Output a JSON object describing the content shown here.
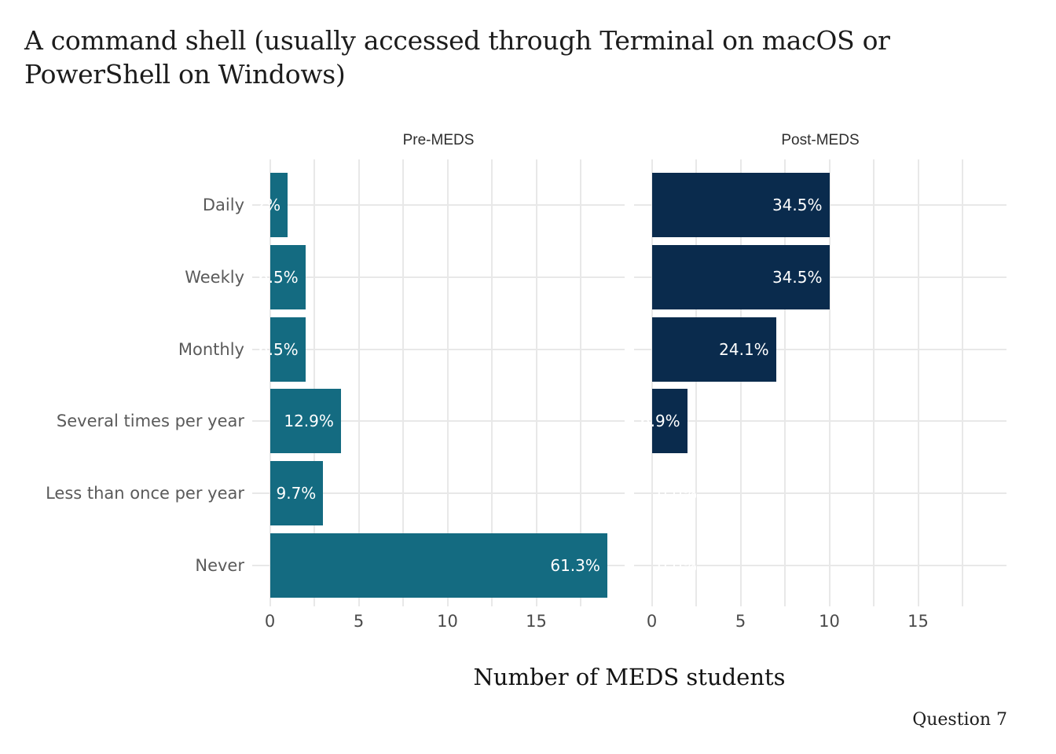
{
  "title": {
    "line1": "A command shell (usually accessed through Terminal on macOS or",
    "line2": "PowerShell on Windows)"
  },
  "caption": "Question 7",
  "axis": {
    "x_title": "Number of MEDS students",
    "tick_labels": [
      "0",
      "5",
      "10",
      "15"
    ],
    "tick_values": [
      0,
      5,
      10,
      15
    ]
  },
  "colors": {
    "pre_bar": "#146b81",
    "post_bar": "#0a2b4d",
    "gridline": "#e8e8e8",
    "bar_label_text": "#ffffff",
    "axis_text": "#4b4b4b",
    "category_text": "#5a5a5a",
    "strip_text": "#2e2e2e",
    "title_text": "#1c1c1c"
  },
  "chart_data": {
    "type": "bar",
    "orientation": "horizontal",
    "title": "A command shell (usually accessed through Terminal on macOS or PowerShell on Windows)",
    "xlabel": "Number of MEDS students",
    "ylabel": "",
    "categories": [
      "Daily",
      "Weekly",
      "Monthly",
      "Several times per year",
      "Less than once per year",
      "Never"
    ],
    "facets": [
      {
        "label": "Pre-MEDS",
        "color": "#146b81",
        "values": [
          1,
          2,
          2,
          4,
          3,
          19
        ],
        "bar_labels": [
          "3.2%",
          "6.5%",
          "6.5%",
          "12.9%",
          "9.7%",
          "61.3%"
        ]
      },
      {
        "label": "Post-MEDS",
        "color": "#0a2b4d",
        "values": [
          10,
          10,
          7,
          2,
          0,
          0
        ],
        "bar_labels": [
          "34.5%",
          "34.5%",
          "24.1%",
          "6.9%",
          "0.0%",
          "0.0%"
        ]
      }
    ],
    "xlim": [
      0,
      19.9
    ],
    "x_ticks": [
      0,
      5,
      10,
      15
    ],
    "gridlines": [
      0,
      2.5,
      5,
      7.5,
      10,
      12.5,
      15,
      17.5
    ],
    "grid": "on",
    "legend": "none"
  }
}
